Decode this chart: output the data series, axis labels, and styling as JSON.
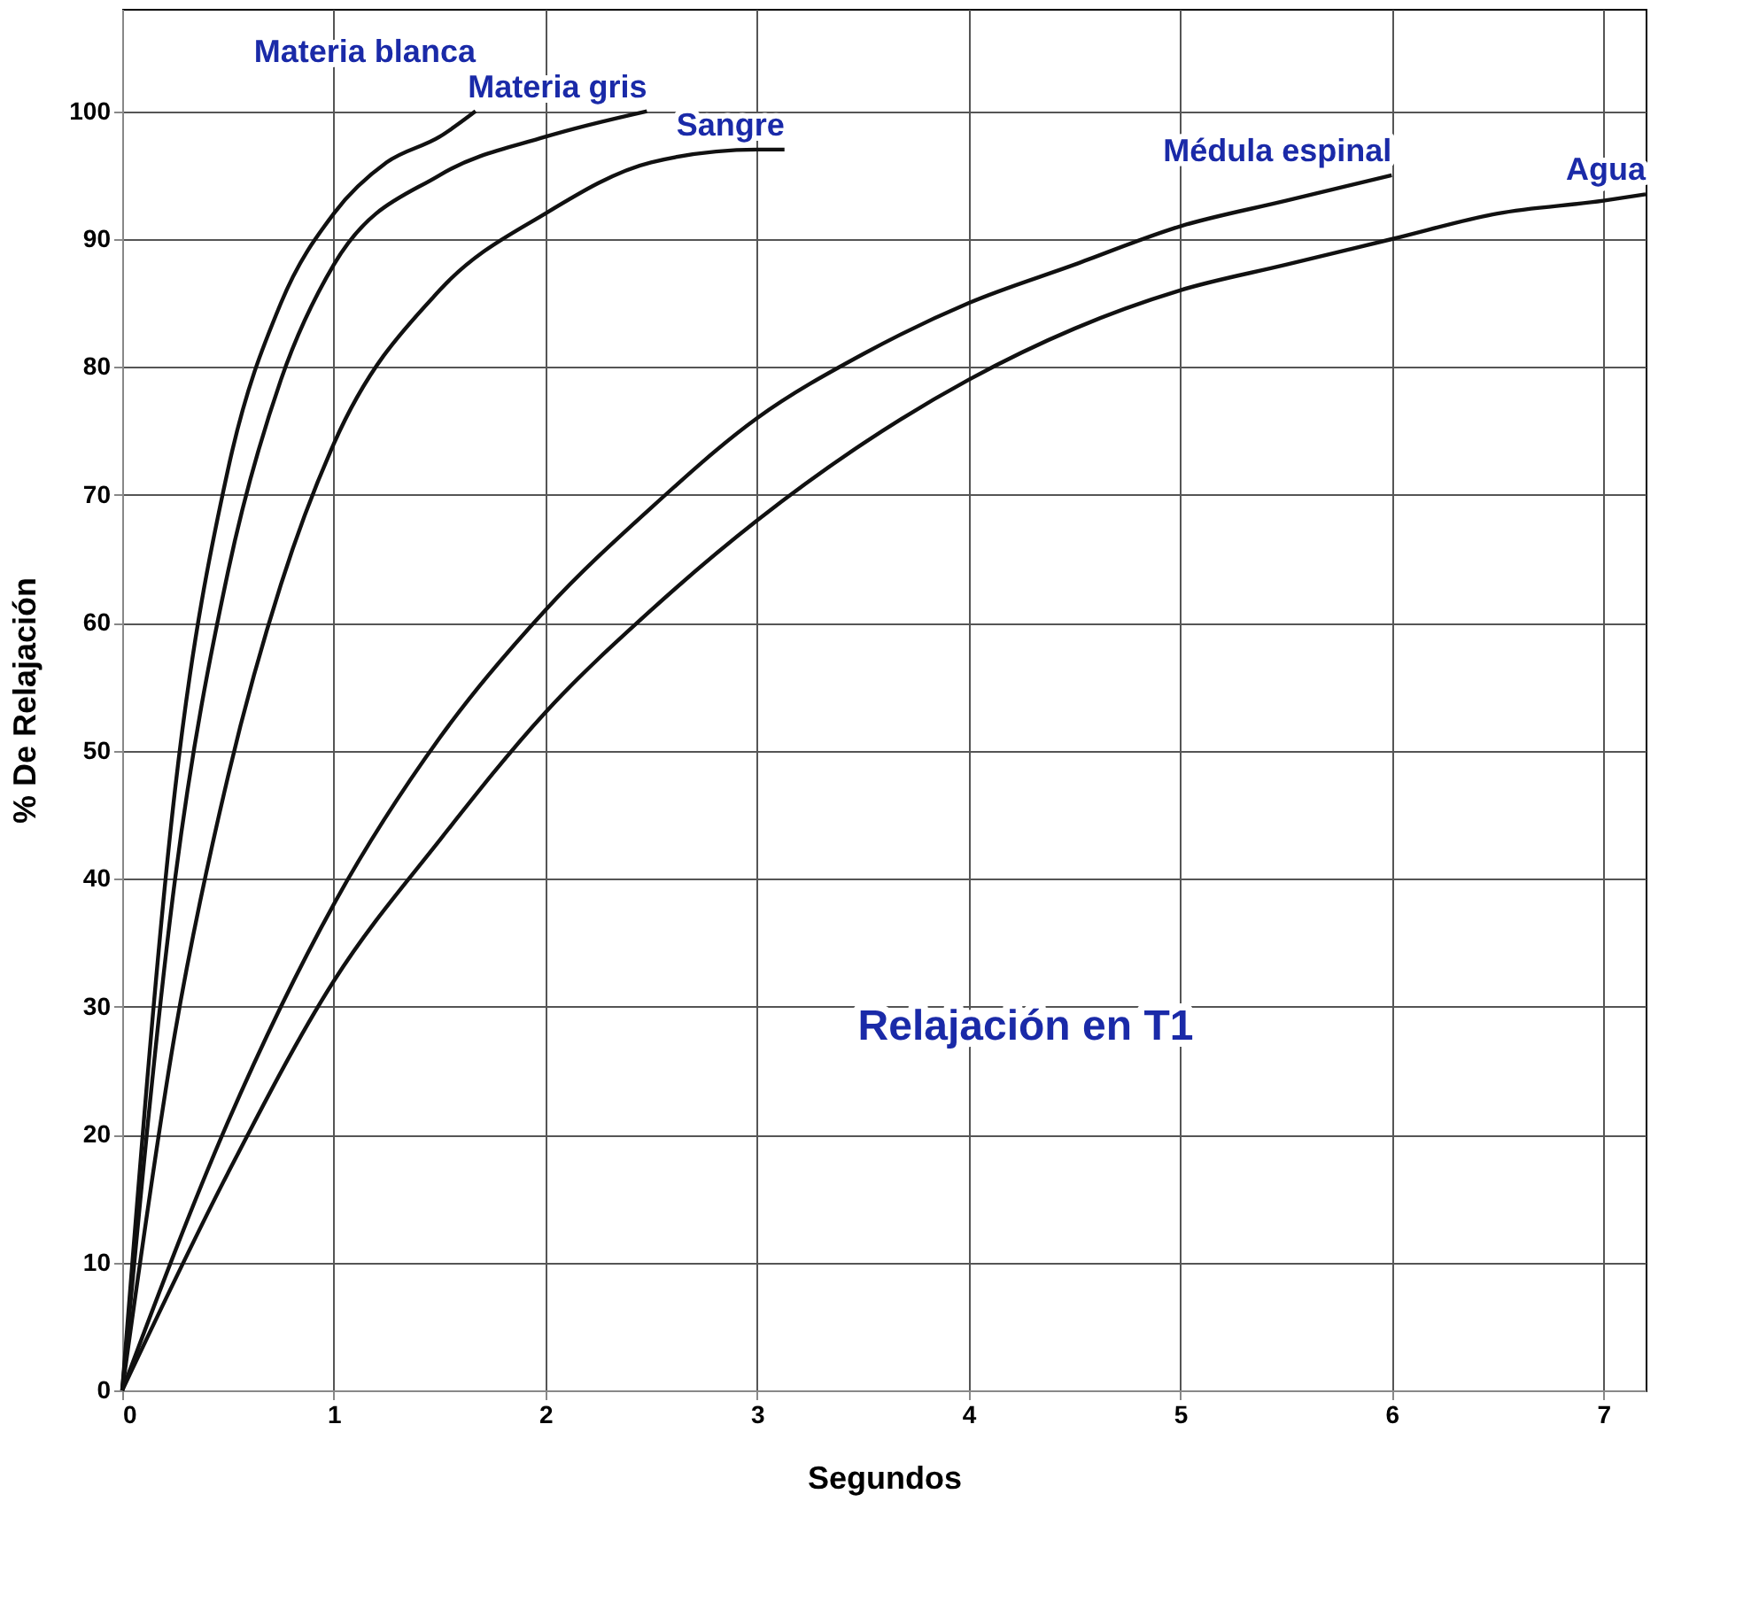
{
  "chart_data": {
    "type": "line",
    "xlabel": "Segundos",
    "ylabel": "% De Relajación",
    "annotations": [
      "Relajación en T1"
    ],
    "xlim": [
      0,
      7.2
    ],
    "xticks": [
      0,
      1,
      2,
      3,
      4,
      5,
      6,
      7
    ],
    "ylim": [
      0,
      108
    ],
    "yticks": [
      0,
      10,
      20,
      30,
      40,
      50,
      60,
      70,
      80,
      90,
      100
    ],
    "grid": true,
    "legend": false,
    "marker": "none",
    "line_style": "solid",
    "series": [
      {
        "name": "Materia blanca",
        "color": "#111111",
        "x": [
          0,
          0.25,
          0.5,
          0.75,
          1,
          1.25,
          1.5,
          1.67
        ],
        "values": [
          0,
          47,
          72,
          85,
          92,
          96,
          98,
          100
        ]
      },
      {
        "name": "Materia gris",
        "color": "#111111",
        "x": [
          0,
          0.25,
          0.5,
          0.75,
          1,
          1.5,
          2,
          2.48
        ],
        "values": [
          0,
          40,
          64,
          79,
          88,
          95,
          98,
          100
        ]
      },
      {
        "name": "Sangre",
        "color": "#111111",
        "x": [
          0,
          0.25,
          0.5,
          0.75,
          1,
          1.5,
          2,
          2.5,
          3,
          3.13
        ],
        "values": [
          0,
          28,
          48,
          63,
          74,
          86,
          92,
          96,
          97,
          97
        ]
      },
      {
        "name": "Médula espinal",
        "color": "#111111",
        "x": [
          0,
          0.5,
          1,
          1.5,
          2,
          2.5,
          3,
          3.5,
          4,
          4.5,
          5,
          5.5,
          6
        ],
        "values": [
          0,
          21,
          38,
          51,
          61,
          69,
          76,
          81,
          85,
          88,
          91,
          93,
          95
        ]
      },
      {
        "name": "Agua",
        "color": "#111111",
        "x": [
          0,
          0.5,
          1,
          1.5,
          2,
          2.5,
          3,
          3.5,
          4,
          4.5,
          5,
          5.5,
          6,
          6.5,
          7,
          7.2
        ],
        "values": [
          0,
          17,
          32,
          43,
          53,
          61,
          68,
          74,
          79,
          83,
          86,
          88,
          90,
          92,
          93,
          93.5
        ]
      }
    ]
  }
}
